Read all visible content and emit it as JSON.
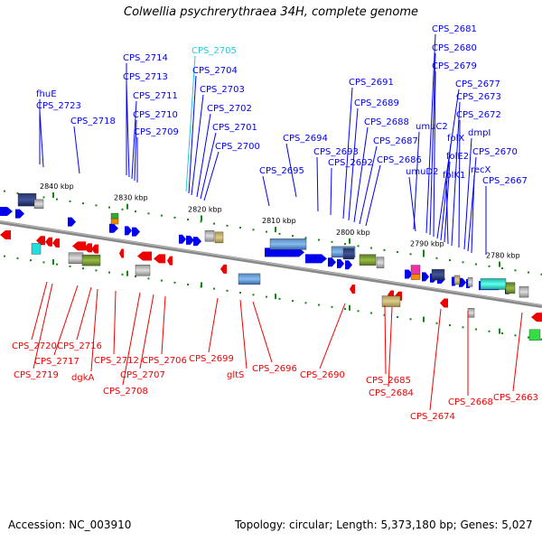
{
  "title": "Colwellia psychrerythraea 34H, complete genome",
  "footer": {
    "accession": "Accession: NC_003910",
    "summary": "Topology: circular; Length: 5,373,180 bp; Genes: 5,027"
  },
  "colors": {
    "forward": "#0000ee",
    "reverse": "#ee0000",
    "highlight": "#22ccdd",
    "backbone": "#777777",
    "tick": "#118811"
  },
  "kbp_labels": [
    "2840 kbp",
    "2830 kbp",
    "2820 kbp",
    "2810 kbp",
    "2800 kbp",
    "2790 kbp",
    "2780 kbp"
  ],
  "top_labels": [
    {
      "text": "fhuE",
      "type": "forward"
    },
    {
      "text": "CPS_2723",
      "type": "forward"
    },
    {
      "text": "CPS_2718",
      "type": "forward"
    },
    {
      "text": "CPS_2714",
      "type": "forward"
    },
    {
      "text": "CPS_2713",
      "type": "forward"
    },
    {
      "text": "CPS_2711",
      "type": "forward"
    },
    {
      "text": "CPS_2710",
      "type": "forward"
    },
    {
      "text": "CPS_2709",
      "type": "forward"
    },
    {
      "text": "CPS_2705",
      "type": "highlight"
    },
    {
      "text": "CPS_2704",
      "type": "forward"
    },
    {
      "text": "CPS_2703",
      "type": "forward"
    },
    {
      "text": "CPS_2702",
      "type": "forward"
    },
    {
      "text": "CPS_2701",
      "type": "forward"
    },
    {
      "text": "CPS_2700",
      "type": "forward"
    },
    {
      "text": "CPS_2695",
      "type": "forward"
    },
    {
      "text": "CPS_2694",
      "type": "forward"
    },
    {
      "text": "CPS_2693",
      "type": "forward"
    },
    {
      "text": "CPS_2692",
      "type": "forward"
    },
    {
      "text": "CPS_2691",
      "type": "forward"
    },
    {
      "text": "CPS_2689",
      "type": "forward"
    },
    {
      "text": "CPS_2688",
      "type": "forward"
    },
    {
      "text": "CPS_2687",
      "type": "forward"
    },
    {
      "text": "CPS_2686",
      "type": "forward"
    },
    {
      "text": "umuC2",
      "type": "forward"
    },
    {
      "text": "umuD2",
      "type": "forward"
    },
    {
      "text": "CPS_2681",
      "type": "forward"
    },
    {
      "text": "CPS_2680",
      "type": "forward"
    },
    {
      "text": "CPS_2679",
      "type": "forward"
    },
    {
      "text": "CPS_2677",
      "type": "forward"
    },
    {
      "text": "folX",
      "type": "forward"
    },
    {
      "text": "folE2",
      "type": "forward"
    },
    {
      "text": "folK1",
      "type": "forward"
    },
    {
      "text": "CPS_2673",
      "type": "forward"
    },
    {
      "text": "CPS_2672",
      "type": "forward"
    },
    {
      "text": "dmpI",
      "type": "forward"
    },
    {
      "text": "CPS_2670",
      "type": "forward"
    },
    {
      "text": "recX",
      "type": "forward"
    },
    {
      "text": "CPS_2667",
      "type": "forward"
    }
  ],
  "bottom_labels": [
    {
      "text": "CPS_2720"
    },
    {
      "text": "CPS_2719"
    },
    {
      "text": "CPS_2717"
    },
    {
      "text": "CPS_2716"
    },
    {
      "text": "dgkA"
    },
    {
      "text": "CPS_2712"
    },
    {
      "text": "CPS_2708"
    },
    {
      "text": "CPS_2707"
    },
    {
      "text": "CPS_2706"
    },
    {
      "text": "CPS_2699"
    },
    {
      "text": "gltS"
    },
    {
      "text": "CPS_2696"
    },
    {
      "text": "CPS_2690"
    },
    {
      "text": "CPS_2685"
    },
    {
      "text": "CPS_2684"
    },
    {
      "text": "CPS_2674"
    },
    {
      "text": "CPS_2668"
    },
    {
      "text": "CPS_2663"
    }
  ]
}
